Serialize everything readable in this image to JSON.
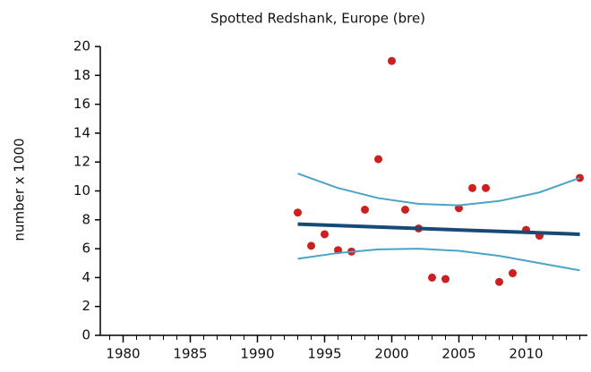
{
  "chart_data": {
    "type": "scatter",
    "title": "Spotted Redshank, Europe (bre)",
    "ylabel": "number x 1000",
    "xlim": [
      1978.5,
      2014.5
    ],
    "ylim": [
      0,
      20
    ],
    "xticks": [
      1980,
      1985,
      1990,
      1995,
      2000,
      2005,
      2010
    ],
    "xminorticks": [
      1979,
      1980,
      1981,
      1982,
      1983,
      1984,
      1985,
      1986,
      1987,
      1988,
      1989,
      1990,
      1991,
      1992,
      1993,
      1994,
      1995,
      1996,
      1997,
      1998,
      1999,
      2000,
      2001,
      2002,
      2003,
      2004,
      2005,
      2006,
      2007,
      2008,
      2009,
      2010,
      2011,
      2012,
      2013,
      2014
    ],
    "yticks": [
      0,
      2,
      4,
      6,
      8,
      10,
      12,
      14,
      16,
      18,
      20
    ],
    "grid": false,
    "series": [
      {
        "kind": "points",
        "color": "#cc1f1f",
        "x": [
          1993,
          1994,
          1995,
          1996,
          1997,
          1998,
          1999,
          2000,
          2001,
          2002,
          2003,
          2004,
          2005,
          2006,
          2007,
          2008,
          2009,
          2010,
          2011,
          2014
        ],
        "values": [
          8.5,
          6.2,
          7.0,
          5.9,
          5.8,
          8.7,
          12.2,
          19.0,
          8.7,
          7.4,
          4.0,
          3.9,
          8.8,
          10.2,
          10.2,
          3.7,
          4.3,
          7.3,
          6.9,
          10.9
        ]
      },
      {
        "kind": "trend",
        "color": "#174a78",
        "x": [
          1993,
          2014
        ],
        "values": [
          7.7,
          7.0
        ]
      },
      {
        "kind": "band",
        "color": "#4aa3c8",
        "x": [
          1993,
          1996,
          1999,
          2002,
          2005,
          2008,
          2011,
          2014
        ],
        "values": [
          11.2,
          10.2,
          9.5,
          9.1,
          9.0,
          9.3,
          9.9,
          10.9
        ]
      },
      {
        "kind": "band",
        "color": "#4aa3c8",
        "x": [
          1993,
          1996,
          1999,
          2002,
          2005,
          2008,
          2011,
          2014
        ],
        "values": [
          5.3,
          5.7,
          5.95,
          6.0,
          5.85,
          5.5,
          5.0,
          4.5
        ]
      }
    ]
  }
}
